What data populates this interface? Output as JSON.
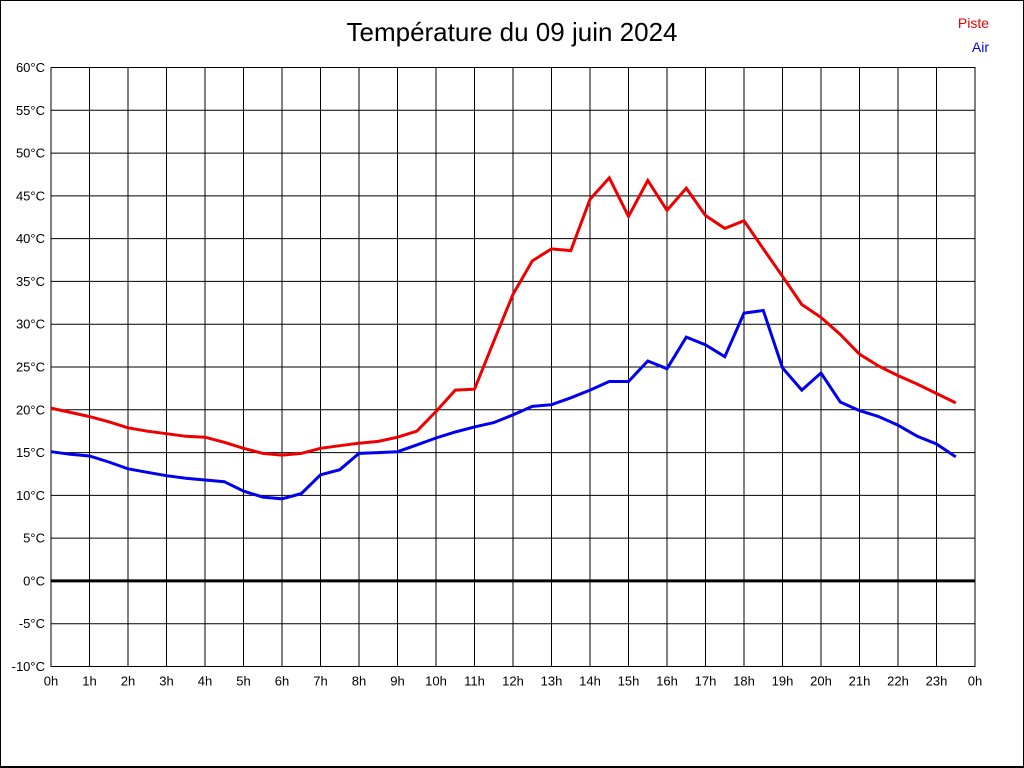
{
  "title": "Température du 09 juin 2024",
  "legend": {
    "piste": {
      "label": "Piste",
      "color": "#ee0000"
    },
    "air": {
      "label": "Air",
      "color": "#0000ee"
    }
  },
  "chart_data": {
    "type": "line",
    "title": "Température du 09 juin 2024",
    "xlabel": "",
    "ylabel": "",
    "x_unit": "hours",
    "xlim": [
      0,
      24
    ],
    "ylim": [
      -10,
      60
    ],
    "y_tick_step": 5,
    "grid": true,
    "zero_line_bold": true,
    "legend_position": "top-right",
    "x_tick_labels": [
      "0h",
      "1h",
      "2h",
      "3h",
      "4h",
      "5h",
      "6h",
      "7h",
      "8h",
      "9h",
      "10h",
      "11h",
      "12h",
      "13h",
      "14h",
      "15h",
      "16h",
      "17h",
      "18h",
      "19h",
      "20h",
      "21h",
      "22h",
      "23h",
      "0h"
    ],
    "y_tick_labels": [
      "60°C",
      "55°C",
      "50°C",
      "45°C",
      "40°C",
      "35°C",
      "30°C",
      "25°C",
      "20°C",
      "15°C",
      "10°C",
      "5°C",
      "0°C",
      "-5°C",
      "-10°C"
    ],
    "x": [
      0,
      0.5,
      1,
      1.5,
      2,
      2.5,
      3,
      3.5,
      4,
      4.5,
      5,
      5.5,
      6,
      6.5,
      7,
      7.5,
      8,
      8.5,
      9,
      9.5,
      10,
      10.5,
      11,
      11.5,
      12,
      12.5,
      13,
      13.5,
      14,
      14.5,
      15,
      15.5,
      16,
      16.5,
      17,
      17.5,
      18,
      18.5,
      19,
      19.5,
      20,
      20.5,
      21,
      21.5,
      22,
      22.5,
      23,
      23.5
    ],
    "series": [
      {
        "name": "Piste",
        "color": "#ee0000",
        "values": [
          20.2,
          19.7,
          19.2,
          18.6,
          17.9,
          17.5,
          17.2,
          16.9,
          16.8,
          16.2,
          15.5,
          14.9,
          14.7,
          14.9,
          15.5,
          15.8,
          16.1,
          16.3,
          16.8,
          17.5,
          19.8,
          22.3,
          22.4,
          28.0,
          33.5,
          37.4,
          38.8,
          38.6,
          44.6,
          47.1,
          42.6,
          46.8,
          43.3,
          45.9,
          42.7,
          41.2,
          42.1,
          38.8,
          35.6,
          32.3,
          30.8,
          28.8,
          26.5,
          25.1,
          24.0,
          23.0,
          21.9,
          20.8
        ]
      },
      {
        "name": "Air",
        "color": "#0000ee",
        "values": [
          15.1,
          14.8,
          14.6,
          13.9,
          13.1,
          12.7,
          12.3,
          12.0,
          11.8,
          11.6,
          10.5,
          9.8,
          9.6,
          10.2,
          12.4,
          13.0,
          14.9,
          15.0,
          15.1,
          15.9,
          16.7,
          17.4,
          18.0,
          18.5,
          19.4,
          20.4,
          20.6,
          21.4,
          22.3,
          23.3,
          23.3,
          25.7,
          24.8,
          28.5,
          27.6,
          26.2,
          31.3,
          31.6,
          24.9,
          22.3,
          24.3,
          20.9,
          19.9,
          19.2,
          18.2,
          16.9,
          16.0,
          14.5
        ]
      }
    ]
  }
}
